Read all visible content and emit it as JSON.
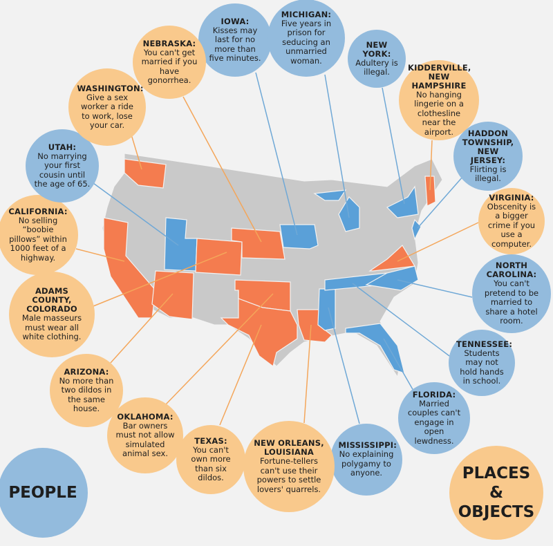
{
  "callouts": [
    {
      "title": "IOWA:",
      "text": "Kisses may last for no more than five minutes."
    },
    {
      "title": "MICHIGAN:",
      "text": "Five years in prison for seducing an unmarried woman."
    },
    {
      "title": "NEW YORK:",
      "text": "Adultery is illegal."
    },
    {
      "title": "KIDDERVILLE, NEW HAMPSHIRE",
      "text": "No hanging lingerie on a clothesline near the airport."
    },
    {
      "title": "HADDON TOWNSHIP, NEW JERSEY:",
      "text": "Flirting is illegal."
    },
    {
      "title": "VIRGINIA:",
      "text": "Obscenity is a bigger crime if you use a computer."
    },
    {
      "title": "NORTH CAROLINA:",
      "text": "You can't pretend to be married to share a hotel room."
    },
    {
      "title": "TENNESSEE:",
      "text": "Students may not hold hands in school."
    },
    {
      "title": "FLORIDA:",
      "text": "Married couples can't engage in open lewdness."
    },
    {
      "title": "MISSISSIPPI:",
      "text": "No explaining polygamy to anyone."
    },
    {
      "title": "NEW ORLEANS, LOUISIANA",
      "text": "Fortune-tellers can't use their powers to settle lovers' quarrels."
    },
    {
      "title": "TEXAS:",
      "text": "You can't own more than six dildos."
    },
    {
      "title": "OKLAHOMA:",
      "text": "Bar owners must not allow simulated animal sex."
    },
    {
      "title": "ARIZONA:",
      "text": "No more than two dildos in the same house."
    },
    {
      "title": "ADAMS COUNTY, COLORADO",
      "text": "Male masseurs must wear all white clothing."
    },
    {
      "title": "CALIFORNIA:",
      "text": "No selling “boobie pillows” within 1000 feet of a highway."
    },
    {
      "title": "UTAH:",
      "text": "No marrying your first cousin until the age of 65."
    },
    {
      "title": "WASHINGTON:",
      "text": "Give a sex worker a ride to work, lose your car."
    },
    {
      "title": "NEBRASKA:",
      "text": "You can't get married if you have gonorrhea."
    }
  ],
  "legend": {
    "people": "PEOPLE",
    "places": "PLACES & OBJECTS"
  }
}
